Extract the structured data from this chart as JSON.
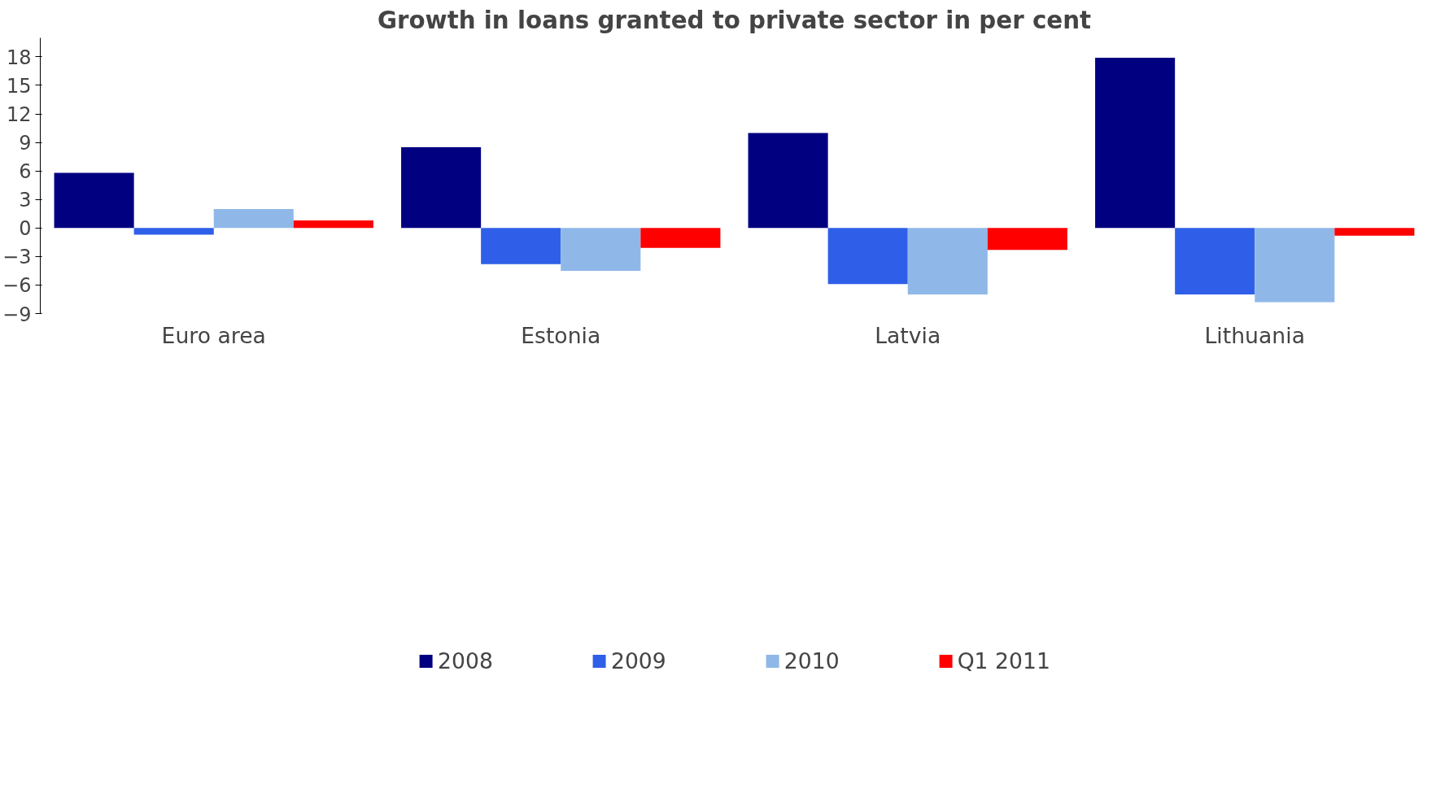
{
  "chart_data": {
    "type": "bar",
    "title": "Growth in loans granted to private sector in per cent",
    "categories": [
      "Euro area",
      "Estonia",
      "Latvia",
      "Lithuania"
    ],
    "series": [
      {
        "name": "2008",
        "color": "#000080",
        "values": [
          5.8,
          8.5,
          10.0,
          17.9
        ]
      },
      {
        "name": "2009",
        "color": "#2f5fe8",
        "values": [
          -0.7,
          -3.8,
          -5.9,
          -7.0
        ]
      },
      {
        "name": "2010",
        "color": "#8fb8e8",
        "values": [
          2.0,
          -4.5,
          -7.0,
          -7.8
        ]
      },
      {
        "name": "Q1 2011",
        "color": "#ff0000",
        "values": [
          0.8,
          -2.1,
          -2.3,
          -0.8
        ]
      }
    ],
    "ylim": [
      -9,
      20
    ],
    "yticks": [
      -9,
      -6,
      -3,
      0,
      3,
      6,
      9,
      12,
      15,
      18
    ],
    "grid": false,
    "legend": "bottom"
  }
}
